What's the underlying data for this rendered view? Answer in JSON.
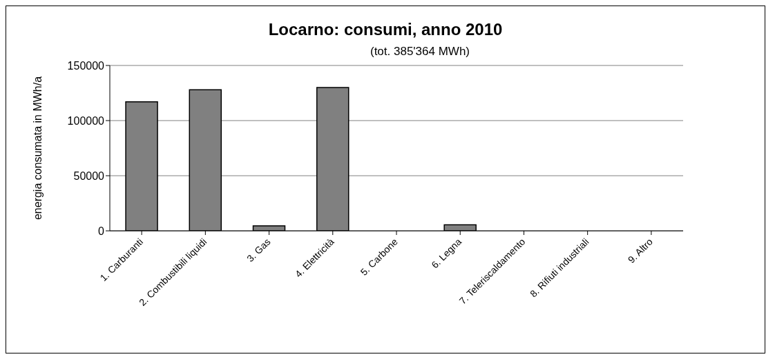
{
  "chart_data": {
    "type": "bar",
    "title": "Locarno: consumi, anno 2010",
    "subtitle": "(tot. 385'364 MWh)",
    "ylabel": "energia consumata in MWh/a",
    "categories": [
      "1. Carburanti",
      "2. Combustibili liquidi",
      "3. Gas",
      "4. Elettricità",
      "5. Carbone",
      "6. Legna",
      "7. Teleriscaldamento",
      "8. Rifiuti industriali",
      "9. Altro"
    ],
    "values": [
      117000,
      128000,
      4600,
      130000,
      0,
      5500,
      0,
      0,
      0
    ],
    "color": "#808080",
    "ylim": [
      0,
      150000
    ],
    "yticks": [
      0,
      50000,
      100000,
      150000
    ],
    "grid": "y"
  }
}
